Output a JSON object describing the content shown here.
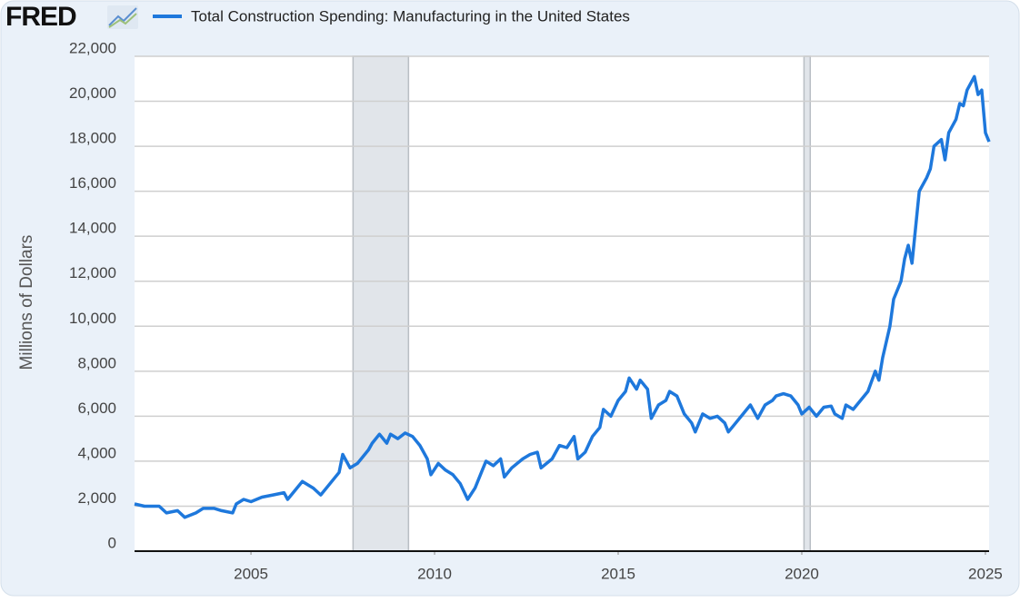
{
  "chart_data": {
    "type": "line",
    "brand": "FRED",
    "y_label": "Millions of Dollars",
    "xlim": [
      2001.83,
      2025.1
    ],
    "xticks": [
      2005,
      2010,
      2015,
      2020,
      2025
    ],
    "ylim": [
      0,
      22000
    ],
    "yticks": [
      0,
      {
        "value": 2000,
        "label": "2,000"
      },
      {
        "value": 4000,
        "label": "4,000"
      },
      {
        "value": 6000,
        "label": "6,000"
      },
      {
        "value": 8000,
        "label": "8,000"
      },
      {
        "value": 10000,
        "label": "10,000"
      },
      {
        "value": 12000,
        "label": "12,000"
      },
      {
        "value": 14000,
        "label": "14,000"
      },
      {
        "value": 16000,
        "label": "16,000"
      },
      {
        "value": 18000,
        "label": "18,000"
      },
      {
        "value": 20000,
        "label": "20,000"
      },
      {
        "value": 22000,
        "label": "22,000"
      }
    ],
    "grid": true,
    "recessions": [
      {
        "start": 2007.78,
        "end": 2009.29
      },
      {
        "start": 2020.06,
        "end": 2020.23
      }
    ],
    "x": [
      2001.83,
      2002.1,
      2002.5,
      2002.7,
      2003.0,
      2003.2,
      2003.5,
      2003.7,
      2004.0,
      2004.2,
      2004.5,
      2004.6,
      2004.8,
      2005.0,
      2005.3,
      2005.6,
      2005.9,
      2006.0,
      2006.2,
      2006.4,
      2006.7,
      2006.9,
      2007.1,
      2007.4,
      2007.5,
      2007.7,
      2007.9,
      2008.2,
      2008.3,
      2008.5,
      2008.7,
      2008.8,
      2009.0,
      2009.2,
      2009.4,
      2009.6,
      2009.8,
      2009.9,
      2010.1,
      2010.3,
      2010.5,
      2010.7,
      2010.9,
      2011.1,
      2011.3,
      2011.4,
      2011.6,
      2011.8,
      2011.9,
      2012.1,
      2012.4,
      2012.6,
      2012.8,
      2012.9,
      2013.2,
      2013.4,
      2013.6,
      2013.8,
      2013.9,
      2014.1,
      2014.3,
      2014.5,
      2014.6,
      2014.8,
      2015.0,
      2015.2,
      2015.3,
      2015.5,
      2015.6,
      2015.8,
      2015.9,
      2016.1,
      2016.3,
      2016.4,
      2016.6,
      2016.8,
      2017.0,
      2017.1,
      2017.3,
      2017.5,
      2017.7,
      2017.9,
      2018.0,
      2018.2,
      2018.4,
      2018.6,
      2018.8,
      2019.0,
      2019.2,
      2019.3,
      2019.5,
      2019.7,
      2019.9,
      2020.0,
      2020.2,
      2020.4,
      2020.6,
      2020.8,
      2020.9,
      2021.1,
      2021.2,
      2021.4,
      2021.6,
      2021.8,
      2022.0,
      2022.1,
      2022.2,
      2022.4,
      2022.5,
      2022.7,
      2022.8,
      2022.9,
      2023.0,
      2023.1,
      2023.2,
      2023.4,
      2023.5,
      2023.6,
      2023.8,
      2023.9,
      2024.0,
      2024.2,
      2024.3,
      2024.4,
      2024.5,
      2024.7,
      2024.8,
      2024.9,
      2025.0,
      2025.1
    ],
    "series": [
      {
        "name": "Total Construction Spending: Manufacturing in the United States",
        "color": "#1e78dc",
        "values": [
          2100,
          2000,
          2000,
          1700,
          1800,
          1500,
          1700,
          1900,
          1900,
          1800,
          1700,
          2100,
          2300,
          2200,
          2400,
          2500,
          2600,
          2300,
          2700,
          3100,
          2800,
          2500,
          2900,
          3500,
          4300,
          3700,
          3900,
          4500,
          4800,
          5200,
          4800,
          5200,
          5000,
          5250,
          5100,
          4700,
          4100,
          3400,
          3900,
          3600,
          3400,
          3000,
          2300,
          2800,
          3600,
          4000,
          3800,
          4100,
          3300,
          3700,
          4100,
          4300,
          4400,
          3700,
          4100,
          4700,
          4600,
          5100,
          4100,
          4400,
          5100,
          5500,
          6300,
          6000,
          6700,
          7100,
          7700,
          7200,
          7600,
          7200,
          5900,
          6500,
          6700,
          7100,
          6900,
          6100,
          5700,
          5300,
          6100,
          5900,
          6000,
          5700,
          5300,
          5700,
          6100,
          6500,
          5900,
          6500,
          6700,
          6900,
          7000,
          6900,
          6500,
          6100,
          6400,
          6000,
          6400,
          6450,
          6100,
          5900,
          6500,
          6300,
          6700,
          7100,
          8000,
          7600,
          8600,
          10000,
          11200,
          12000,
          13000,
          13600,
          12800,
          14400,
          16000,
          16600,
          17000,
          18000,
          18300,
          17400,
          18600,
          19200,
          19900,
          19800,
          20500,
          21100,
          20300,
          20500,
          18600,
          18200
        ]
      }
    ]
  }
}
